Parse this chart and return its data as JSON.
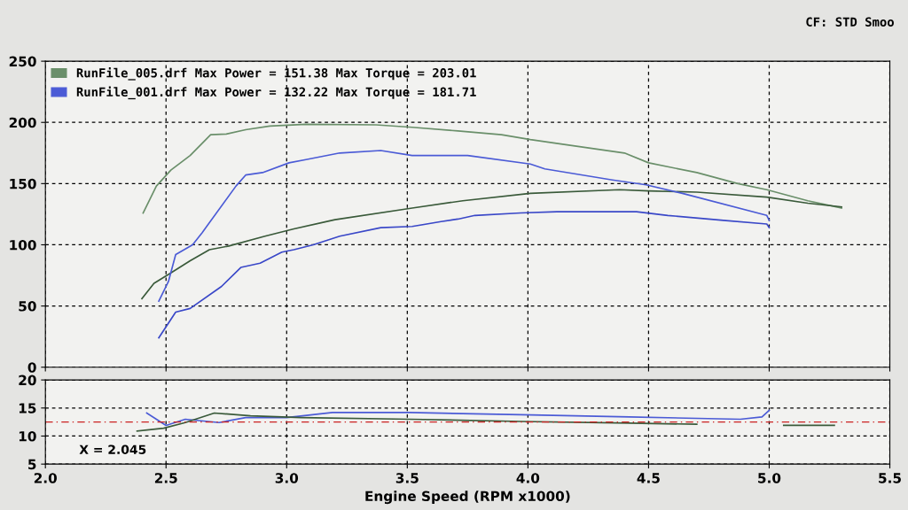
{
  "chart_data": [
    {
      "type": "line",
      "legend": "top left",
      "grid": true,
      "tick_labels": "y",
      "xlim": [
        2.0,
        5.5
      ],
      "xticks": [
        2,
        2.5,
        3,
        3.5,
        4,
        4.5,
        5,
        5.5
      ],
      "ylim": [
        0,
        250
      ],
      "yticks": [
        0,
        50,
        100,
        150,
        200,
        250
      ],
      "annotations": [
        "CF: STD Smoo"
      ],
      "series": [
        {
          "name": "RunFile_005.drf Max Power = 151.38 Max Torque = 203.01",
          "color": "#6a8f6a",
          "x": [
            2.405,
            2.46,
            2.52,
            2.6,
            2.685,
            2.75,
            2.83,
            2.93,
            3.08,
            3.37,
            3.52,
            3.71,
            3.89,
            4.01,
            4.15,
            4.4,
            4.5,
            4.7,
            4.87,
            4.99,
            5.16,
            5.3
          ],
          "values": [
            126,
            148,
            161,
            173,
            190,
            190.5,
            194,
            197,
            198.4,
            198,
            196,
            193,
            190,
            186,
            182,
            175,
            167,
            159,
            150,
            145,
            136,
            130
          ]
        },
        {
          "color": "#3a5a3a",
          "x": [
            2.4,
            2.45,
            2.52,
            2.6,
            2.68,
            2.76,
            2.91,
            3.03,
            3.2,
            3.52,
            3.73,
            4.01,
            4.38,
            4.5,
            4.7,
            4.99,
            5.16,
            5.3
          ],
          "values": [
            56,
            68.5,
            77,
            87,
            96,
            99,
            107,
            113,
            120.5,
            130,
            136,
            142,
            145,
            144,
            143,
            139,
            134,
            131
          ]
        },
        {
          "name": "RunFile_001.drf Max Power = 132.22 Max Torque = 181.71",
          "color": "#4b5bd6",
          "x": [
            2.47,
            2.51,
            2.54,
            2.61,
            2.65,
            2.79,
            2.83,
            2.9,
            3.01,
            3.08,
            3.22,
            3.39,
            3.52,
            3.64,
            3.75,
            4.01,
            4.07,
            4.35,
            4.49,
            4.64,
            4.99,
            5.0
          ],
          "values": [
            54,
            70,
            92,
            100,
            110,
            148,
            157,
            159,
            167,
            169.6,
            175,
            177,
            173,
            173,
            173,
            166,
            162,
            153,
            149,
            142,
            124,
            120
          ]
        },
        {
          "color": "#3a48c8",
          "x": [
            2.47,
            2.54,
            2.6,
            2.73,
            2.81,
            2.89,
            2.98,
            3.03,
            3.11,
            3.22,
            3.39,
            3.52,
            3.64,
            3.71,
            3.78,
            3.97,
            4.12,
            4.45,
            4.58,
            4.81,
            4.99,
            5.0
          ],
          "values": [
            24,
            45,
            48,
            66,
            81.5,
            85,
            94,
            96,
            100,
            107,
            114,
            115,
            119,
            121,
            124,
            126,
            127,
            127,
            124,
            120,
            117,
            114
          ]
        }
      ]
    },
    {
      "type": "line",
      "grid": true,
      "xlim": [
        2.0,
        5.5
      ],
      "xticks": [
        {
          "value": 2,
          "label": "2.0"
        },
        2.5,
        {
          "value": 3,
          "label": "3.0"
        },
        3.5,
        {
          "value": 4,
          "label": "4.0"
        },
        4.5,
        {
          "value": 5,
          "label": "5.0"
        },
        5.5
      ],
      "ylim": [
        5,
        20
      ],
      "yticks": [
        5,
        10,
        15,
        20
      ],
      "xlabel": "Engine Speed (RPM x1000)",
      "annotations": [
        "X = 2.045"
      ],
      "ref_lines": [
        {
          "axis": "y",
          "value": 12.5,
          "color": "#cc2222",
          "line_style": "dashed"
        }
      ],
      "series": [
        {
          "color": "#4b5bd6",
          "x": [
            2.42,
            2.5,
            2.58,
            2.72,
            2.83,
            3.0,
            3.19,
            3.51,
            3.97,
            4.42,
            4.88,
            4.97,
            5.0
          ],
          "values": [
            14.1,
            11.9,
            13.0,
            12.4,
            13.3,
            13.3,
            14.2,
            14.2,
            13.8,
            13.4,
            13.0,
            13.4,
            14.6
          ]
        },
        {
          "color": "#3a5a3a",
          "x": [
            2.38,
            2.49,
            2.58,
            2.7,
            2.85,
            3.06,
            3.51,
            3.97,
            4.42,
            4.7,
            4.88,
            5.06,
            5.27
          ],
          "values": [
            10.9,
            11.4,
            12.4,
            14.1,
            13.6,
            13.3,
            13.0,
            12.6,
            12.3,
            12.1,
            null,
            11.9,
            11.9
          ]
        }
      ]
    }
  ]
}
